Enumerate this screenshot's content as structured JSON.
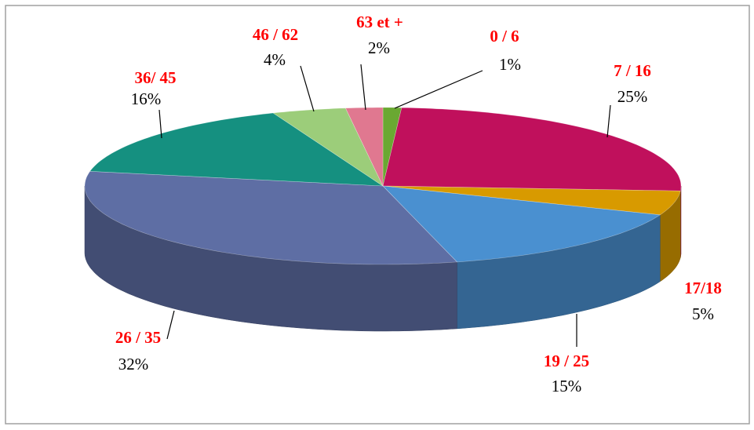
{
  "chart_data": {
    "type": "pie",
    "categories": [
      "0 / 6",
      "7 / 16",
      "17/18",
      "19 / 25",
      "26 / 35",
      "36/ 45",
      "46 / 62",
      "63 et +"
    ],
    "values": [
      1,
      25,
      5,
      15,
      32,
      16,
      4,
      2
    ],
    "value_labels": [
      "1%",
      "25%",
      "5%",
      "15%",
      "32%",
      "16%",
      "4%",
      "2%"
    ],
    "colors": [
      "#6aa832",
      "#c0105c",
      "#d89a00",
      "#4a90d0",
      "#5e6ea4",
      "#159080",
      "#9ccd7a",
      "#e07890"
    ]
  }
}
